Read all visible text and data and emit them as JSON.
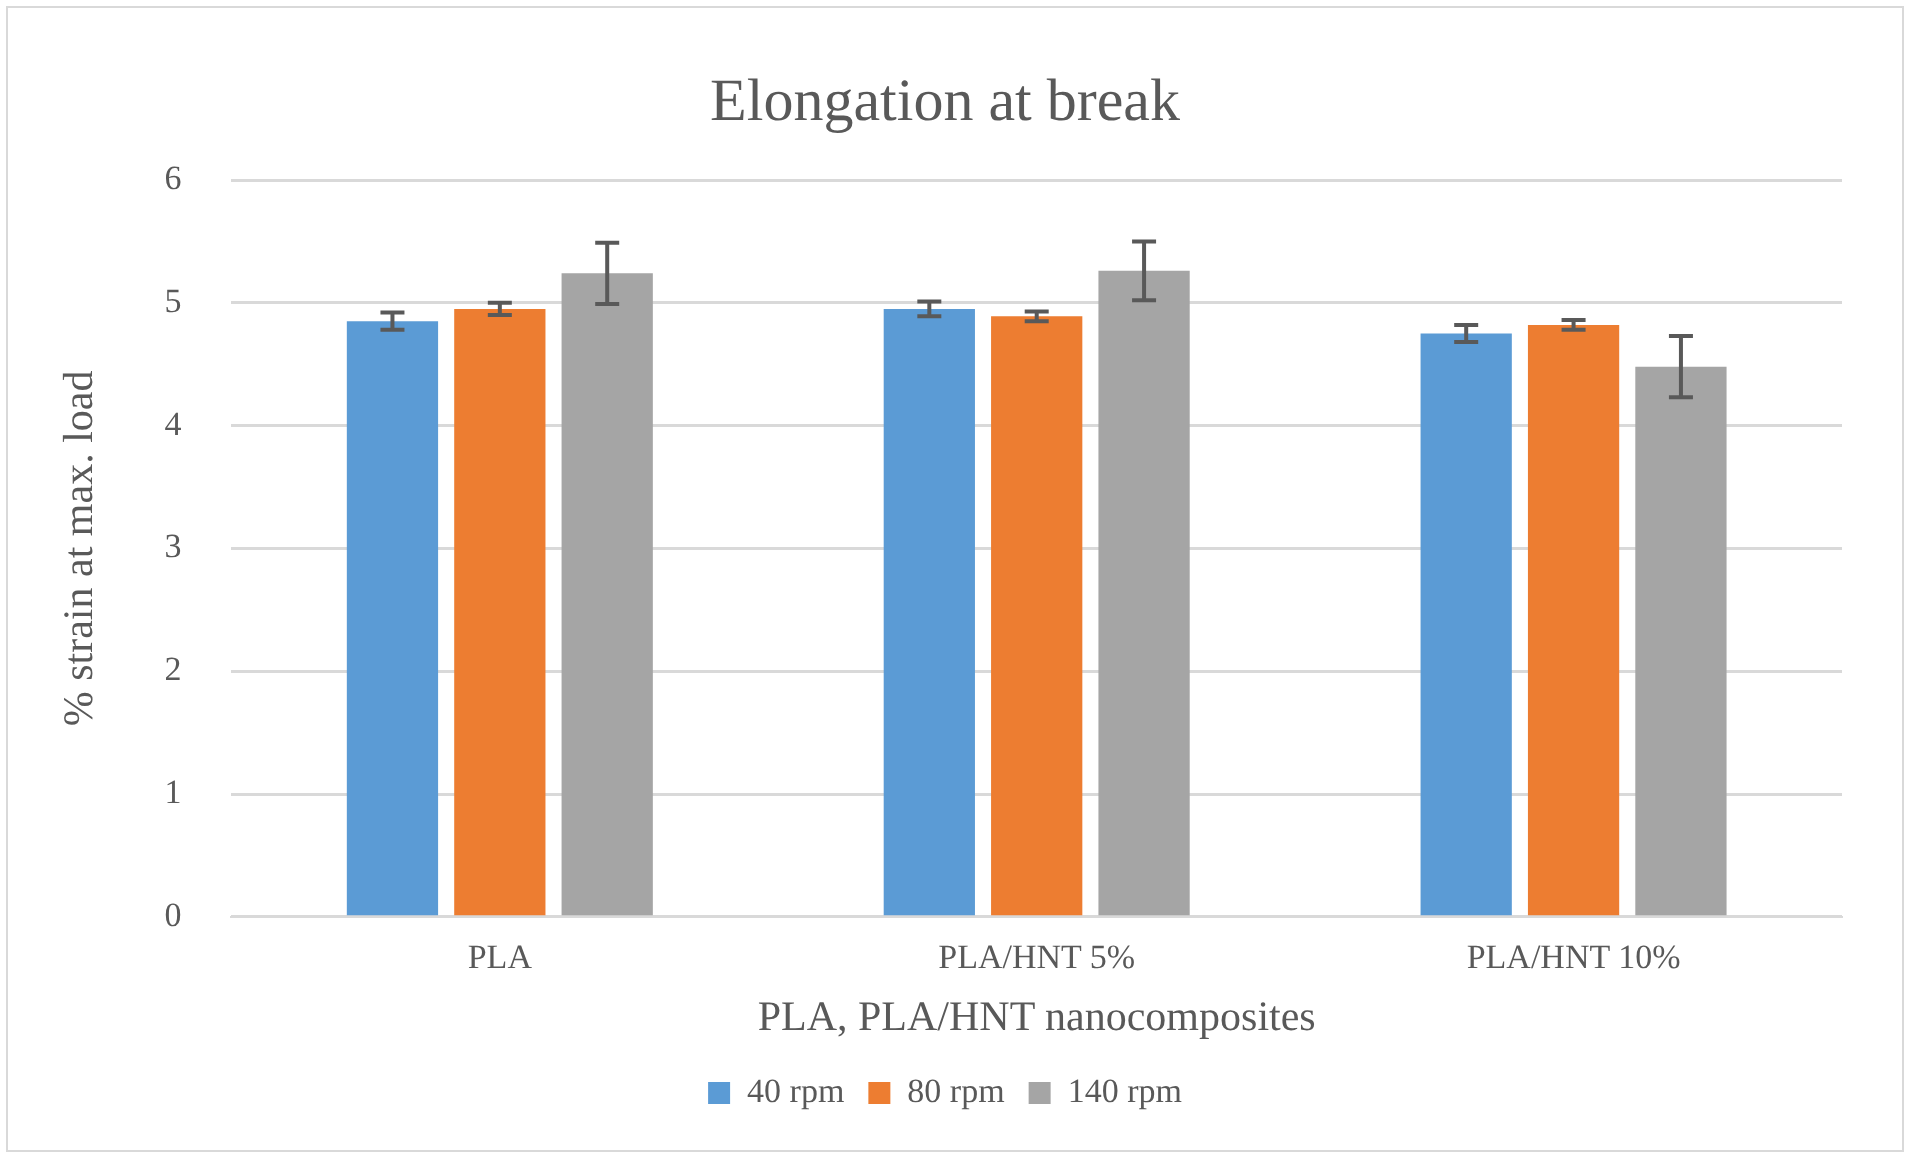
{
  "chart_data": {
    "type": "bar",
    "title": "Elongation at break",
    "xlabel": "PLA, PLA/HNT nanocomposites",
    "ylabel": "% strain at max. load",
    "categories": [
      "PLA",
      "PLA/HNT 5%",
      "PLA/HNT 10%"
    ],
    "series": [
      {
        "name": "40 rpm",
        "color": "#5b9bd5",
        "values": [
          4.85,
          4.95,
          4.75
        ],
        "errors": [
          0.07,
          0.06,
          0.07
        ]
      },
      {
        "name": "80 rpm",
        "color": "#ed7d31",
        "values": [
          4.95,
          4.89,
          4.82
        ],
        "errors": [
          0.05,
          0.04,
          0.04
        ]
      },
      {
        "name": "140 rpm",
        "color": "#a5a5a5",
        "values": [
          5.24,
          5.26,
          4.48
        ],
        "errors": [
          0.25,
          0.24,
          0.25
        ]
      }
    ],
    "ylim": [
      0,
      6
    ],
    "yticks": [
      0,
      1,
      2,
      3,
      4,
      5,
      6
    ],
    "grid": "y",
    "legend": "bottom"
  }
}
